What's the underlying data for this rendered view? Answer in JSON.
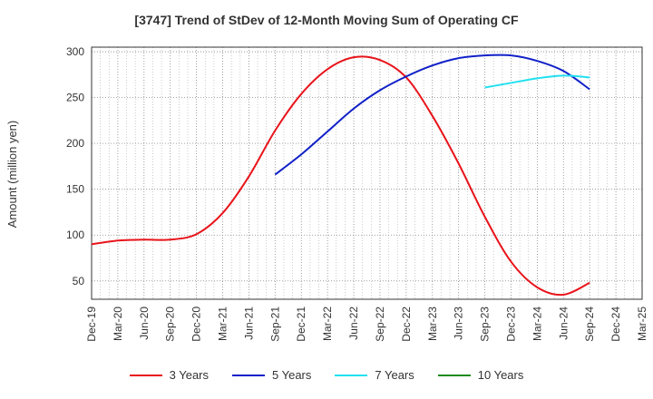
{
  "chart_data": {
    "type": "line",
    "title": "[3747]  Trend of StDev of 12-Month Moving Sum of Operating CF",
    "ylabel": "Amount (million yen)",
    "xlabel": "",
    "ylim": [
      30,
      305
    ],
    "yticks": [
      50,
      100,
      150,
      200,
      250,
      300
    ],
    "categories": [
      "Dec-19",
      "Mar-20",
      "Jun-20",
      "Sep-20",
      "Dec-20",
      "Mar-21",
      "Jun-21",
      "Sep-21",
      "Dec-21",
      "Mar-22",
      "Jun-22",
      "Sep-22",
      "Dec-22",
      "Mar-23",
      "Jun-23",
      "Sep-23",
      "Dec-23",
      "Mar-24",
      "Jun-24",
      "Sep-24",
      "Dec-24",
      "Mar-25"
    ],
    "grid": true,
    "legend_position": "bottom",
    "series": [
      {
        "name": "3 Years",
        "color": "#e8141b",
        "values": [
          90,
          94,
          95,
          95,
          101,
          124,
          164,
          214,
          254,
          281,
          294,
          291,
          272,
          230,
          178,
          120,
          71,
          43,
          35,
          48,
          null,
          null
        ]
      },
      {
        "name": "5 Years",
        "color": "#1020c8",
        "values": [
          null,
          null,
          null,
          null,
          null,
          null,
          null,
          166,
          188,
          213,
          238,
          258,
          273,
          285,
          293,
          296,
          296,
          290,
          279,
          259,
          null,
          null
        ]
      },
      {
        "name": "7 Years",
        "color": "#22e0f0",
        "values": [
          null,
          null,
          null,
          null,
          null,
          null,
          null,
          null,
          null,
          null,
          null,
          null,
          null,
          null,
          null,
          261,
          266,
          271,
          274,
          272,
          null,
          null
        ]
      },
      {
        "name": "10 Years",
        "color": "#1a8a1a",
        "values": [
          null,
          null,
          null,
          null,
          null,
          null,
          null,
          null,
          null,
          null,
          null,
          null,
          null,
          null,
          null,
          null,
          null,
          null,
          null,
          null,
          null,
          null
        ]
      }
    ]
  }
}
